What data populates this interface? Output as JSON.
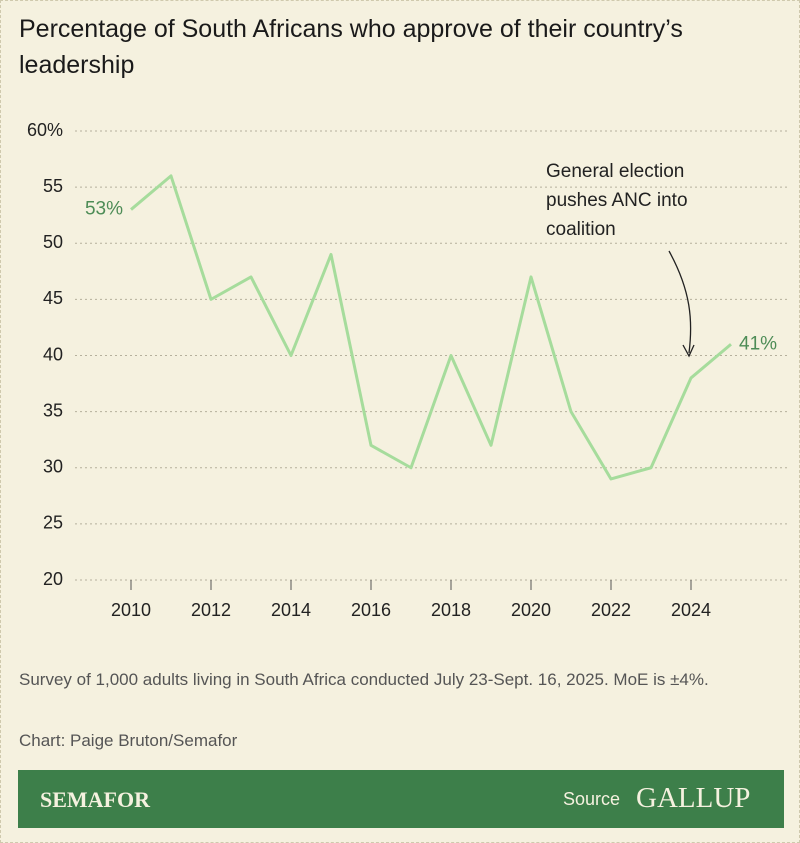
{
  "chart_data": {
    "type": "line",
    "title": "Percentage of South Africans who approve of their country’s leadership",
    "x": [
      2010,
      2011,
      2012,
      2013,
      2014,
      2015,
      2016,
      2017,
      2018,
      2019,
      2020,
      2021,
      2022,
      2023,
      2024,
      2025
    ],
    "values": [
      53,
      56,
      45,
      47,
      40,
      49,
      32,
      30,
      40,
      32,
      47,
      35,
      29,
      30,
      38,
      41
    ],
    "value_labels": [
      "53%",
      null,
      null,
      null,
      null,
      null,
      null,
      null,
      null,
      null,
      null,
      null,
      null,
      null,
      null,
      "41%"
    ],
    "color": "#a6dc9c",
    "xlim": [
      2008.6,
      2026.4
    ],
    "xticks": [
      2010,
      2012,
      2014,
      2016,
      2018,
      2020,
      2022,
      2024
    ],
    "ylim": [
      20,
      60
    ],
    "yticks": [
      20,
      25,
      30,
      35,
      40,
      45,
      50,
      55,
      {
        "value": 60,
        "label": "60%"
      }
    ],
    "grid": true,
    "annotation": "General election pushes ANC into coalition",
    "note": "Survey of 1,000 adults living in South Africa conducted July 23-Sept. 16, 2025. MoE is ±4%.",
    "credit": "Chart: Paige Bruton/Semafor",
    "brand": "SEMAFOR",
    "source_label": "Source",
    "source": "GALLUP"
  }
}
